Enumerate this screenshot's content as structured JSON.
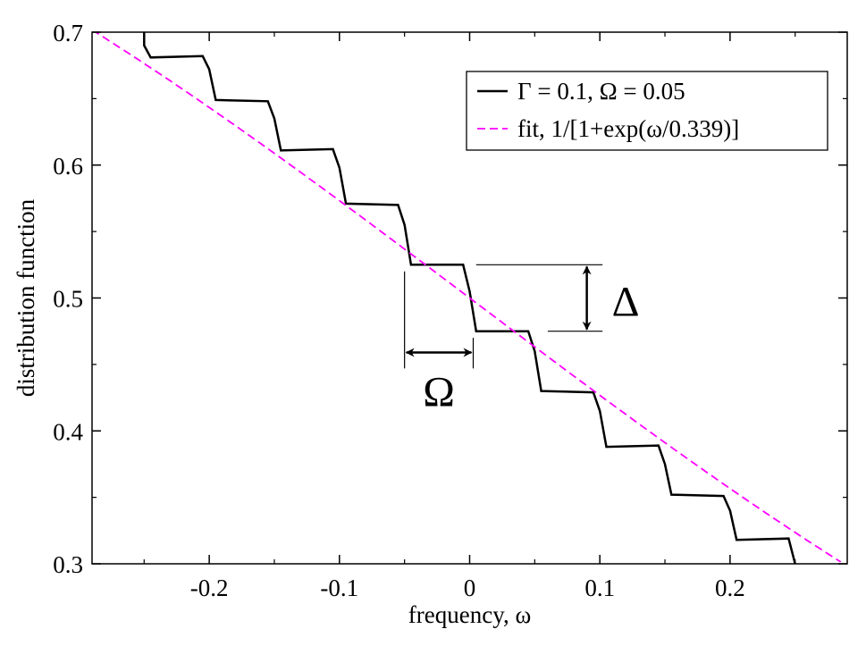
{
  "chart_data": {
    "type": "line",
    "title": "",
    "xlabel": "frequency, ω",
    "ylabel": "distribution function",
    "xlim": [
      -0.29,
      0.29
    ],
    "ylim": [
      0.3,
      0.7
    ],
    "x_ticks": [
      -0.2,
      -0.1,
      0,
      0.1,
      0.2
    ],
    "x_tick_labels": [
      "-0.2",
      "-0.1",
      "0",
      "0.1",
      "0.2"
    ],
    "y_ticks": [
      0.3,
      0.4,
      0.5,
      0.6,
      0.7
    ],
    "y_tick_labels": [
      "0.3",
      "0.4",
      "0.5",
      "0.6",
      "0.7"
    ],
    "grid": false,
    "legend_position": "top-right",
    "series": [
      {
        "name": "Γ = 0.1, Ω = 0.05",
        "style": "solid",
        "color": "#000000",
        "x": [
          -0.25,
          -0.25,
          -0.245,
          -0.205,
          -0.2,
          -0.195,
          -0.155,
          -0.15,
          -0.145,
          -0.105,
          -0.1,
          -0.095,
          -0.055,
          -0.05,
          -0.045,
          -0.005,
          0,
          0.005,
          0.045,
          0.05,
          0.055,
          0.095,
          0.1,
          0.105,
          0.145,
          0.15,
          0.155,
          0.195,
          0.2,
          0.205,
          0.245,
          0.25
        ],
        "y": [
          0.7,
          0.69,
          0.681,
          0.682,
          0.672,
          0.649,
          0.648,
          0.635,
          0.611,
          0.612,
          0.598,
          0.571,
          0.57,
          0.555,
          0.525,
          0.525,
          0.505,
          0.475,
          0.475,
          0.46,
          0.43,
          0.429,
          0.415,
          0.388,
          0.389,
          0.375,
          0.352,
          0.351,
          0.34,
          0.318,
          0.319,
          0.3
        ]
      },
      {
        "name": "fit, 1/[1+exp(ω/0.339)]",
        "style": "dashed",
        "color": "#ff00ff",
        "function": "1/(1+exp(x/0.339))",
        "x_range": [
          -0.29,
          0.285
        ]
      }
    ],
    "annotations": {
      "delta_label": "Δ",
      "omega_label": "Ω",
      "delta_marker": {
        "x_from": 0.005,
        "x_to": 0.1,
        "y_top": 0.525,
        "y_bottom": 0.475,
        "arrow_x": 0.09
      },
      "omega_marker": {
        "x_left": -0.05,
        "x_right": 0.0,
        "y_top": 0.52,
        "y_bottom": 0.447,
        "arrow_y": 0.459
      }
    }
  }
}
